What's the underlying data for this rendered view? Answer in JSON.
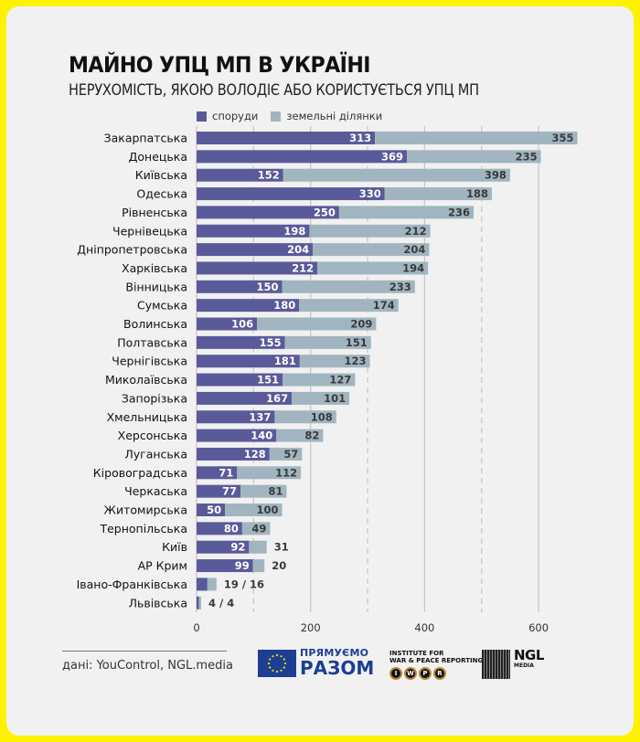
{
  "header": {
    "title": "МАЙНО УПЦ МП В УКРАЇНІ",
    "subtitle": "НЕРУХОМІСТЬ, ЯКОЮ ВОЛОДІЄ АБО КОРИСТУЄТЬСЯ УПЦ МП"
  },
  "colors": {
    "frame": "#fff200",
    "background": "#f1f1f1",
    "structures": "#5a5a9a",
    "land": "#a1b5c0"
  },
  "chart_data": {
    "type": "bar",
    "orientation": "horizontal",
    "stacked": true,
    "title": "МАЙНО УПЦ МП В УКРАЇНІ",
    "subtitle": "НЕРУХОМІСТЬ, ЯКОЮ ВОЛОДІЄ АБО КОРИСТУЄТЬСЯ УПЦ МП",
    "legend_position": "top",
    "categories": [
      "Закарпатська",
      "Донецька",
      "Київська",
      "Одеська",
      "Рівненська",
      "Чернівецька",
      "Дніпропетровська",
      "Харківська",
      "Вінницька",
      "Сумська",
      "Волинська",
      "Полтавська",
      "Чернігівська",
      "Миколаївська",
      "Запорізька",
      "Хмельницька",
      "Херсонська",
      "Луганська",
      "Кіровоградська",
      "Черкаська",
      "Житомирська",
      "Тернопільська",
      "Київ",
      "АР Крим",
      "Івано-Франківська",
      "Львівська"
    ],
    "series": [
      {
        "name": "споруди",
        "color": "#5a5a9a",
        "values": [
          313,
          369,
          152,
          330,
          250,
          198,
          204,
          212,
          150,
          180,
          106,
          155,
          181,
          151,
          167,
          137,
          140,
          128,
          71,
          77,
          50,
          80,
          92,
          99,
          19,
          4
        ]
      },
      {
        "name": "земельні ділянки",
        "color": "#a1b5c0",
        "values": [
          355,
          235,
          398,
          188,
          236,
          212,
          204,
          194,
          233,
          174,
          209,
          151,
          123,
          127,
          101,
          108,
          82,
          57,
          112,
          81,
          100,
          49,
          31,
          20,
          16,
          4
        ]
      }
    ],
    "combined_labels": {
      "Івано-Франківська": "19 / 16",
      "Львівська": "4 / 4"
    },
    "xlim": [
      0,
      680
    ],
    "xticks": [
      0,
      200,
      400,
      600
    ],
    "xtick_labels": [
      "0",
      "200",
      "400",
      "600"
    ],
    "grid_major": [
      200,
      400,
      600
    ],
    "grid_minor_dashed": [
      100,
      300,
      500
    ],
    "xlabel": "",
    "ylabel": ""
  },
  "footer": {
    "source": "дані: YouControl, NGL.media",
    "logos": {
      "eu_line1": "ПРЯМУЄМО",
      "eu_line2": "РАЗОМ",
      "iwpr_line1": "INSTITUTE FOR",
      "iwpr_line2": "WAR & PEACE REPORTING",
      "iwpr_letters": [
        "I",
        "W",
        "P",
        "R"
      ],
      "ngl_line1": "NGL",
      "ngl_line2": "MEDIA"
    }
  }
}
